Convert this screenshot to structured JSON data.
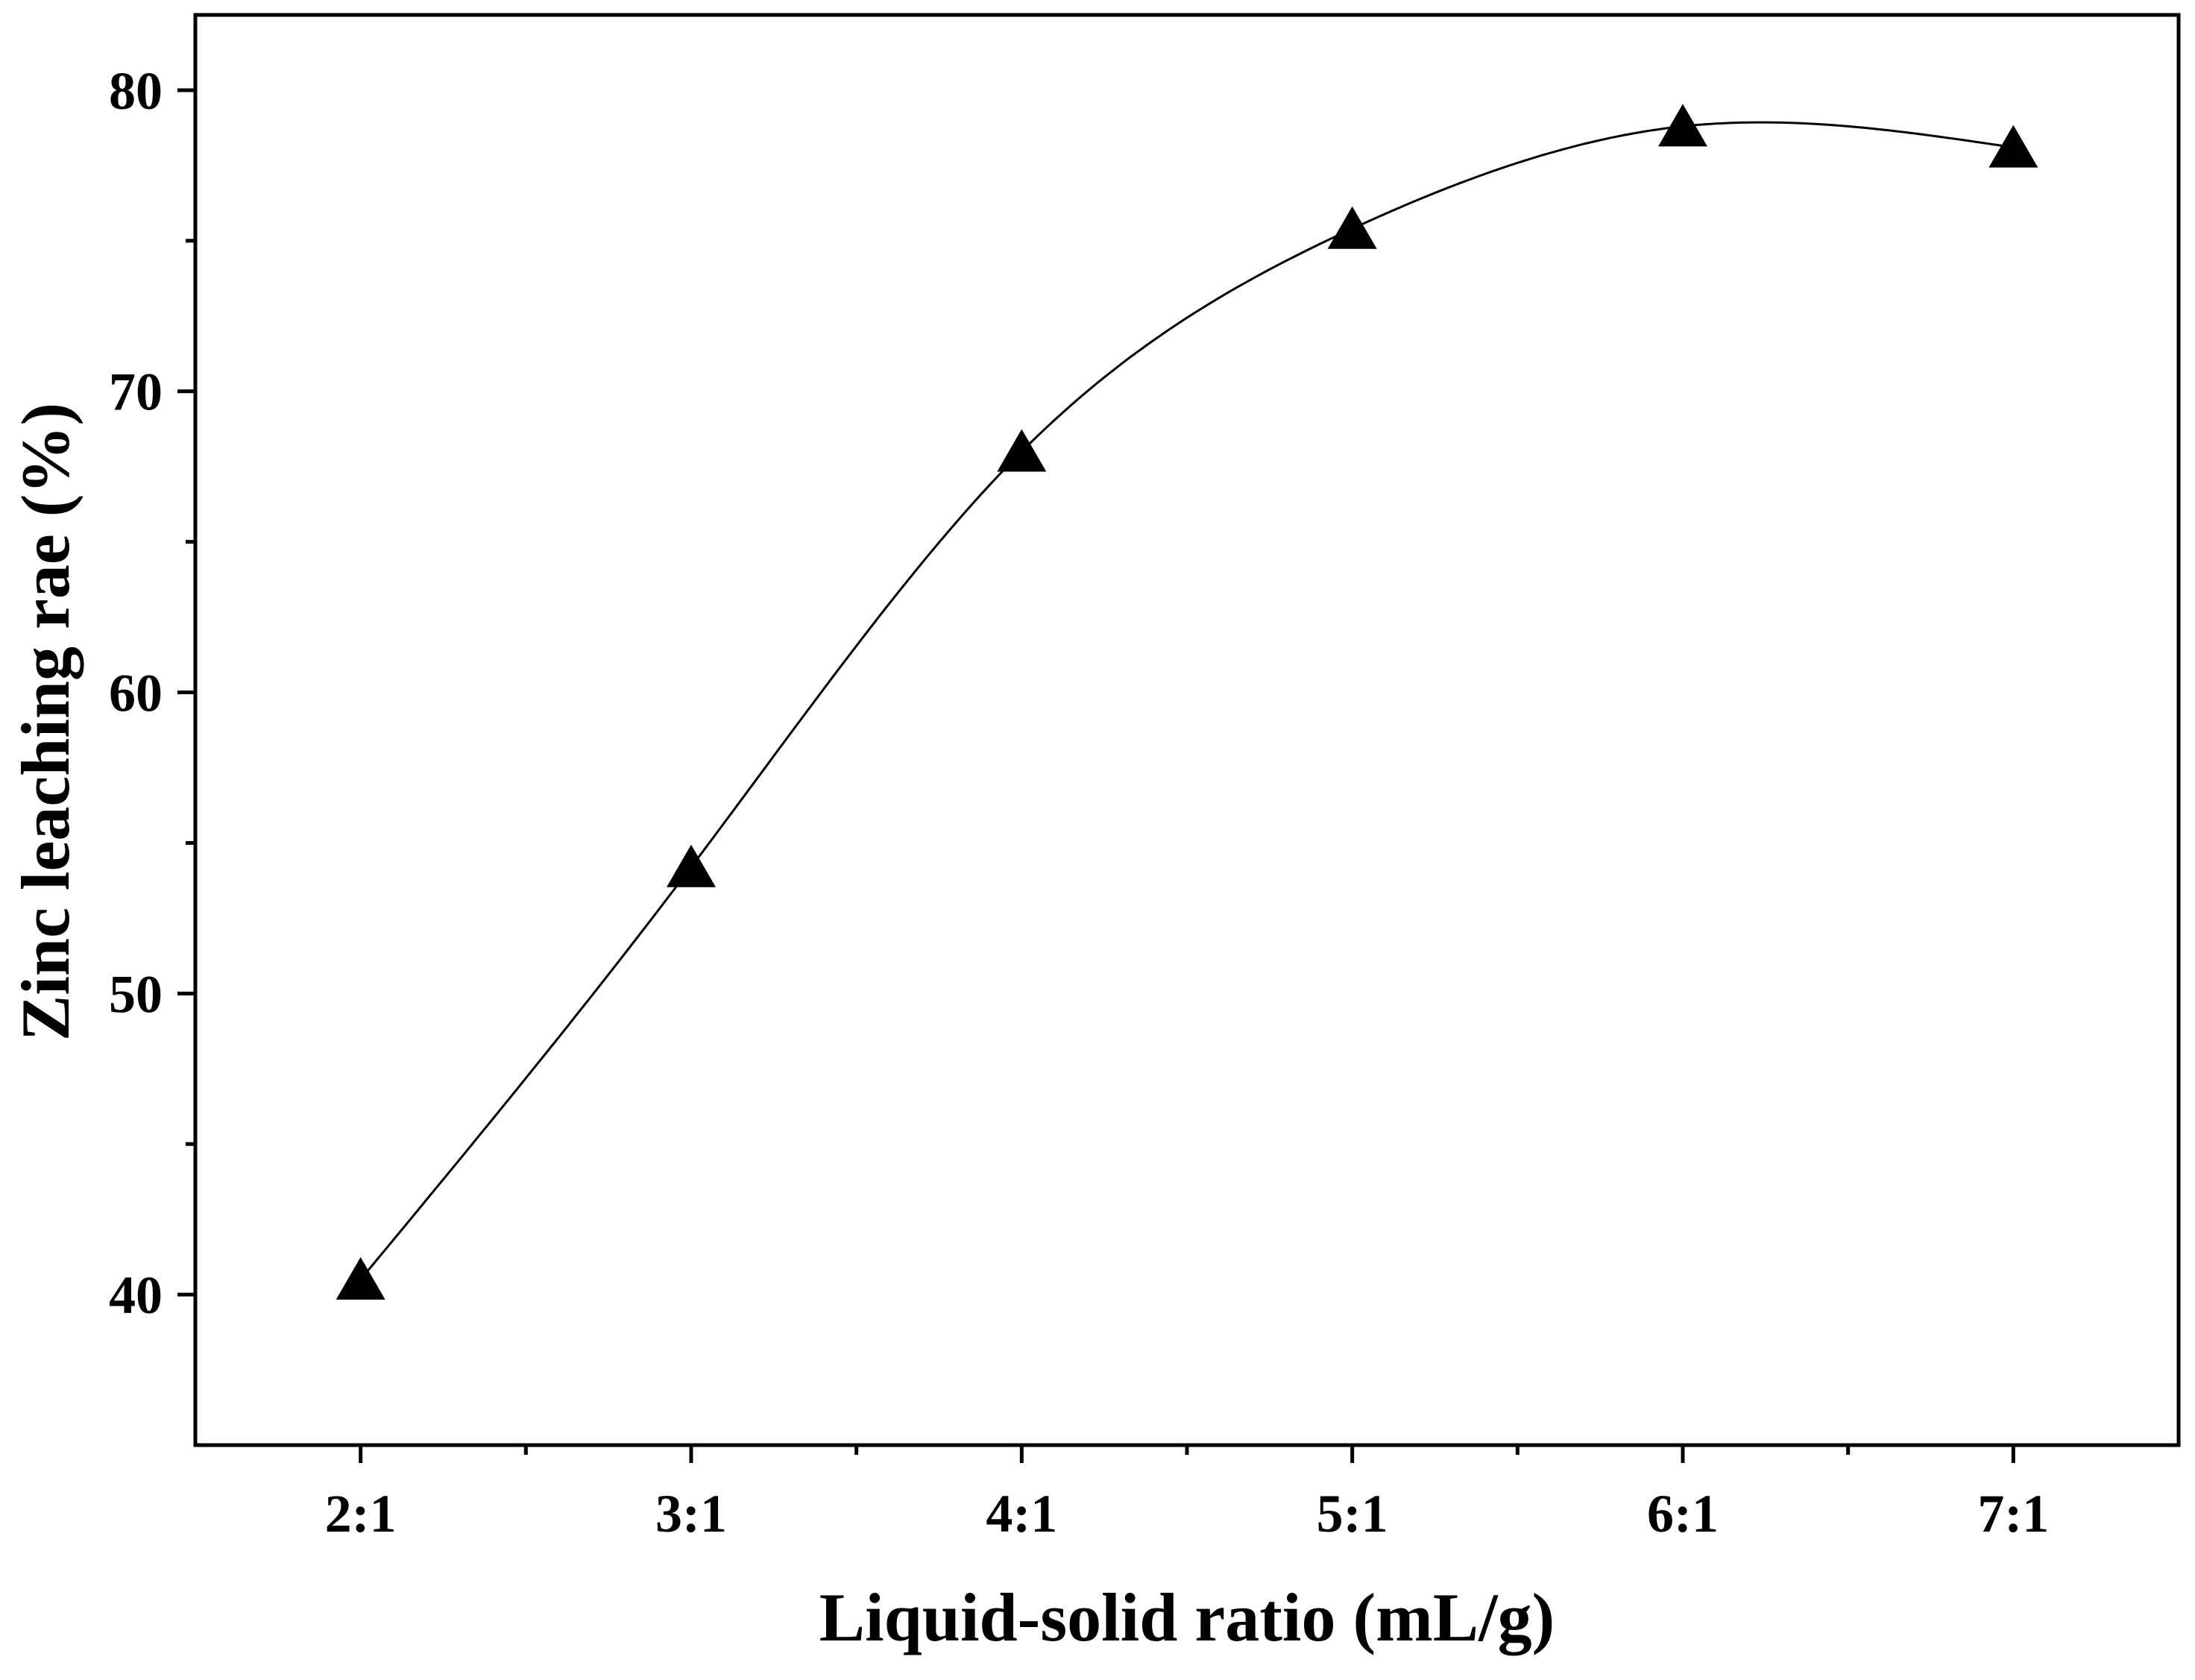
{
  "chart_data": {
    "type": "scatter",
    "title": "",
    "xlabel": "Liquid-solid ratio (mL/g)",
    "ylabel": "Zinc leaching rae (%)",
    "categories": [
      "2:1",
      "3:1",
      "4:1",
      "5:1",
      "6:1",
      "7:1"
    ],
    "x": [
      2,
      3,
      4,
      5,
      6,
      7
    ],
    "xlim": [
      1.5,
      7.5
    ],
    "ylim": [
      35,
      82.5
    ],
    "y_ticks": [
      40,
      50,
      60,
      70,
      80
    ],
    "y_minor_ticks": [
      45,
      55,
      65,
      75
    ],
    "x_minor_ticks": [
      2.5,
      3.5,
      4.5,
      5.5,
      6.5
    ],
    "series": [
      {
        "values": [
          40.5,
          54.2,
          68.0,
          75.4,
          78.8,
          78.1
        ],
        "marker": "triangle",
        "color": "#000000",
        "fit_curve": true
      }
    ],
    "grid": false,
    "legend": "none"
  }
}
